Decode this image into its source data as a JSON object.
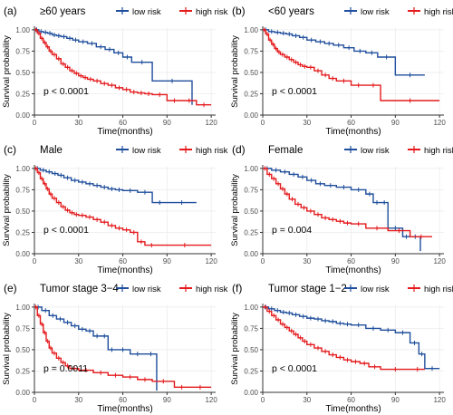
{
  "colors": {
    "low": "#1f4e9c",
    "high": "#e41a1c",
    "grid": "#ebebeb",
    "axis": "#333333"
  },
  "chart_data": [
    {
      "type": "line",
      "panel": "(a)",
      "title": "≥60 years",
      "xlabel": "Time(months)",
      "ylabel": "Survival probability",
      "xlim": [
        0,
        123
      ],
      "ylim": [
        0,
        1.02
      ],
      "xticks": [
        0,
        30,
        60,
        90,
        120
      ],
      "xtick_labels": [
        "0",
        "30",
        "60",
        "90",
        "120"
      ],
      "yticks": [
        0,
        0.25,
        0.5,
        0.75,
        1
      ],
      "ytick_labels": [
        "0.00",
        "0.25",
        "0.50",
        "0.75",
        "1.00"
      ],
      "legend": [
        "low risk",
        "high risk"
      ],
      "pvalue": "p < 0.0001",
      "series": [
        {
          "name": "low risk",
          "x": [
            0,
            3,
            6,
            9,
            12,
            15,
            18,
            22,
            26,
            30,
            36,
            42,
            48,
            54,
            60,
            66,
            80,
            107
          ],
          "y": [
            1,
            0.98,
            0.97,
            0.96,
            0.94,
            0.93,
            0.92,
            0.9,
            0.88,
            0.86,
            0.84,
            0.8,
            0.77,
            0.73,
            0.68,
            0.62,
            0.4,
            0.12
          ]
        },
        {
          "name": "high risk",
          "x": [
            0,
            2,
            4,
            6,
            8,
            10,
            12,
            15,
            18,
            21,
            24,
            27,
            30,
            33,
            36,
            40,
            45,
            50,
            55,
            60,
            65,
            70,
            75,
            80,
            90,
            100,
            110,
            120
          ],
          "y": [
            1,
            0.96,
            0.9,
            0.85,
            0.8,
            0.75,
            0.71,
            0.66,
            0.6,
            0.56,
            0.52,
            0.49,
            0.46,
            0.44,
            0.42,
            0.4,
            0.37,
            0.35,
            0.32,
            0.3,
            0.27,
            0.26,
            0.25,
            0.24,
            0.17,
            0.17,
            0.12,
            0.12
          ]
        }
      ]
    },
    {
      "type": "line",
      "panel": "(b)",
      "title": "<60 years",
      "xlabel": "Time(months)",
      "ylabel": "Survival probability",
      "xlim": [
        0,
        123
      ],
      "ylim": [
        0,
        1.02
      ],
      "xticks": [
        0,
        30,
        60,
        90,
        120
      ],
      "xtick_labels": [
        "0",
        "30",
        "60",
        "90",
        "120"
      ],
      "yticks": [
        0,
        0.25,
        0.5,
        0.75,
        1
      ],
      "ytick_labels": [
        "0.00",
        "0.25",
        "0.50",
        "0.75",
        "1.00"
      ],
      "legend": [
        "low risk",
        "high risk"
      ],
      "pvalue": "p < 0.0001",
      "series": [
        {
          "name": "low risk",
          "x": [
            0,
            4,
            8,
            12,
            16,
            20,
            25,
            30,
            36,
            42,
            48,
            55,
            62,
            70,
            78,
            90,
            110
          ],
          "y": [
            1,
            0.98,
            0.97,
            0.96,
            0.95,
            0.93,
            0.91,
            0.88,
            0.86,
            0.84,
            0.82,
            0.79,
            0.75,
            0.73,
            0.68,
            0.47,
            0.47
          ]
        },
        {
          "name": "high risk",
          "x": [
            0,
            2,
            4,
            6,
            8,
            10,
            12,
            15,
            18,
            21,
            24,
            27,
            30,
            35,
            40,
            45,
            50,
            60,
            70,
            80,
            120
          ],
          "y": [
            1,
            0.95,
            0.88,
            0.83,
            0.78,
            0.74,
            0.71,
            0.68,
            0.65,
            0.62,
            0.59,
            0.57,
            0.56,
            0.52,
            0.47,
            0.43,
            0.4,
            0.35,
            0.35,
            0.17,
            0.17
          ]
        }
      ]
    },
    {
      "type": "line",
      "panel": "(c)",
      "title": "Male",
      "xlabel": "Time(months)",
      "ylabel": "Survival probability",
      "xlim": [
        0,
        123
      ],
      "ylim": [
        0,
        1.02
      ],
      "xticks": [
        0,
        30,
        60,
        90,
        120
      ],
      "xtick_labels": [
        "0",
        "30",
        "60",
        "90",
        "120"
      ],
      "yticks": [
        0,
        0.25,
        0.5,
        0.75,
        1
      ],
      "ytick_labels": [
        "0.00",
        "0.25",
        "0.50",
        "0.75",
        "1.00"
      ],
      "legend": [
        "low risk",
        "high risk"
      ],
      "pvalue": "p < 0.0001",
      "series": [
        {
          "name": "low risk",
          "x": [
            0,
            4,
            8,
            12,
            16,
            20,
            25,
            30,
            35,
            40,
            45,
            50,
            55,
            60,
            70,
            80,
            90,
            110
          ],
          "y": [
            1,
            0.98,
            0.96,
            0.94,
            0.92,
            0.89,
            0.86,
            0.84,
            0.82,
            0.8,
            0.78,
            0.76,
            0.75,
            0.74,
            0.72,
            0.6,
            0.6,
            0.6
          ]
        },
        {
          "name": "high risk",
          "x": [
            0,
            2,
            4,
            6,
            8,
            10,
            12,
            15,
            18,
            21,
            24,
            27,
            30,
            35,
            40,
            45,
            50,
            55,
            60,
            65,
            70,
            75,
            84,
            120
          ],
          "y": [
            1,
            0.95,
            0.88,
            0.82,
            0.76,
            0.7,
            0.65,
            0.6,
            0.55,
            0.51,
            0.48,
            0.46,
            0.45,
            0.43,
            0.4,
            0.37,
            0.33,
            0.3,
            0.28,
            0.25,
            0.14,
            0.1,
            0.1,
            0.1
          ]
        }
      ]
    },
    {
      "type": "line",
      "panel": "(d)",
      "title": "Female",
      "xlabel": "Time(months)",
      "ylabel": "Survival probability",
      "xlim": [
        0,
        123
      ],
      "ylim": [
        0,
        1.02
      ],
      "xticks": [
        0,
        30,
        60,
        90,
        120
      ],
      "xtick_labels": [
        "0",
        "30",
        "60",
        "90",
        "120"
      ],
      "yticks": [
        0,
        0.25,
        0.5,
        0.75,
        1
      ],
      "ytick_labels": [
        "0.00",
        "0.25",
        "0.50",
        "0.75",
        "1.00"
      ],
      "legend": [
        "low risk",
        "high risk"
      ],
      "pvalue": "p = 0.004",
      "series": [
        {
          "name": "low risk",
          "x": [
            0,
            6,
            12,
            18,
            24,
            30,
            36,
            42,
            50,
            60,
            70,
            75,
            80,
            85,
            95,
            100,
            107
          ],
          "y": [
            1,
            0.98,
            0.96,
            0.93,
            0.9,
            0.86,
            0.82,
            0.8,
            0.78,
            0.75,
            0.7,
            0.6,
            0.6,
            0.3,
            0.2,
            0.2,
            0.03
          ]
        },
        {
          "name": "high risk",
          "x": [
            0,
            3,
            6,
            9,
            12,
            15,
            18,
            22,
            26,
            30,
            35,
            40,
            45,
            50,
            55,
            60,
            70,
            85,
            100,
            115
          ],
          "y": [
            1,
            0.93,
            0.88,
            0.82,
            0.76,
            0.7,
            0.64,
            0.58,
            0.54,
            0.5,
            0.46,
            0.42,
            0.4,
            0.38,
            0.36,
            0.35,
            0.3,
            0.27,
            0.2,
            0.2
          ]
        }
      ]
    },
    {
      "type": "line",
      "panel": "(e)",
      "title": "Tumor stage 3−4",
      "xlabel": "Time(months)",
      "ylabel": "Survival probability",
      "xlim": [
        0,
        123
      ],
      "ylim": [
        0,
        1.02
      ],
      "xticks": [
        0,
        30,
        60,
        90,
        120
      ],
      "xtick_labels": [
        "0",
        "30",
        "60",
        "90",
        "120"
      ],
      "yticks": [
        0,
        0.25,
        0.5,
        0.75,
        1
      ],
      "ytick_labels": [
        "0.00",
        "0.25",
        "0.50",
        "0.75",
        "1.00"
      ],
      "legend": [
        "low risk",
        "high risk"
      ],
      "pvalue": "p = 0.0011",
      "series": [
        {
          "name": "low risk",
          "x": [
            0,
            5,
            10,
            15,
            20,
            25,
            30,
            35,
            40,
            45,
            50,
            55,
            65,
            75,
            83
          ],
          "y": [
            1,
            0.96,
            0.9,
            0.86,
            0.82,
            0.78,
            0.74,
            0.72,
            0.66,
            0.66,
            0.5,
            0.5,
            0.45,
            0.45,
            0.02
          ]
        },
        {
          "name": "high risk",
          "x": [
            0,
            2,
            4,
            6,
            8,
            10,
            12,
            15,
            18,
            21,
            24,
            30,
            40,
            50,
            60,
            70,
            80,
            95,
            105,
            120
          ],
          "y": [
            1,
            0.9,
            0.8,
            0.7,
            0.6,
            0.52,
            0.46,
            0.4,
            0.35,
            0.31,
            0.28,
            0.26,
            0.23,
            0.2,
            0.18,
            0.15,
            0.13,
            0.06,
            0.06,
            0.06
          ]
        }
      ]
    },
    {
      "type": "line",
      "panel": "(f)",
      "title": "Tumor stage 1−2",
      "xlabel": "Time(months)",
      "ylabel": "Survival probability",
      "xlim": [
        0,
        123
      ],
      "ylim": [
        0,
        1.02
      ],
      "xticks": [
        0,
        30,
        60,
        90,
        120
      ],
      "xtick_labels": [
        "0",
        "30",
        "60",
        "90",
        "120"
      ],
      "yticks": [
        0,
        0.25,
        0.5,
        0.75,
        1
      ],
      "ytick_labels": [
        "0.00",
        "0.25",
        "0.50",
        "0.75",
        "1.00"
      ],
      "legend": [
        "low risk",
        "high risk"
      ],
      "pvalue": "p < 0.0001",
      "series": [
        {
          "name": "low risk",
          "x": [
            0,
            4,
            8,
            12,
            16,
            20,
            25,
            30,
            35,
            40,
            45,
            50,
            55,
            60,
            70,
            80,
            90,
            100,
            106,
            110,
            120
          ],
          "y": [
            1,
            0.98,
            0.96,
            0.94,
            0.93,
            0.91,
            0.89,
            0.87,
            0.86,
            0.84,
            0.83,
            0.81,
            0.8,
            0.79,
            0.75,
            0.73,
            0.7,
            0.58,
            0.45,
            0.28,
            0.28
          ]
        },
        {
          "name": "high risk",
          "x": [
            0,
            3,
            6,
            9,
            12,
            15,
            18,
            21,
            24,
            27,
            30,
            35,
            40,
            45,
            50,
            55,
            60,
            66,
            72,
            80,
            100,
            110
          ],
          "y": [
            1,
            0.95,
            0.9,
            0.85,
            0.8,
            0.76,
            0.72,
            0.68,
            0.64,
            0.6,
            0.56,
            0.52,
            0.48,
            0.44,
            0.41,
            0.38,
            0.36,
            0.34,
            0.3,
            0.27,
            0.27,
            0.27
          ]
        }
      ]
    }
  ]
}
